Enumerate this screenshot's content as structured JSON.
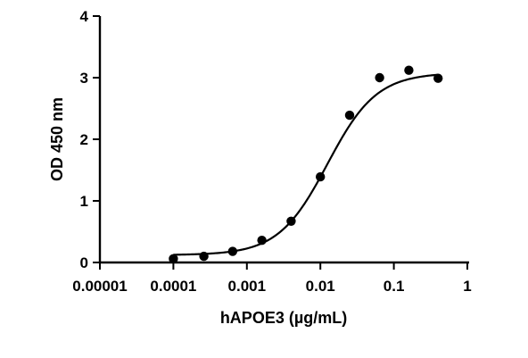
{
  "chart_data": {
    "type": "scatter",
    "title": "",
    "xlabel": "hAPOE3 (µg/mL)",
    "ylabel": "OD 450 nm",
    "x_scale": "log",
    "xlim": [
      1e-05,
      1
    ],
    "ylim": [
      0,
      4
    ],
    "x_ticks": [
      {
        "value": 1e-05,
        "label": "0.00001"
      },
      {
        "value": 0.0001,
        "label": "0.0001"
      },
      {
        "value": 0.001,
        "label": "0.001"
      },
      {
        "value": 0.01,
        "label": "0.01"
      },
      {
        "value": 0.1,
        "label": "0.1"
      },
      {
        "value": 1,
        "label": "1"
      }
    ],
    "y_ticks": [
      {
        "value": 0,
        "label": "0"
      },
      {
        "value": 1,
        "label": "1"
      },
      {
        "value": 2,
        "label": "2"
      },
      {
        "value": 3,
        "label": "3"
      },
      {
        "value": 4,
        "label": "4"
      }
    ],
    "grid": false,
    "legend": "none",
    "series": [
      {
        "points": [
          {
            "x": 0.0001,
            "y": 0.06
          },
          {
            "x": 0.00026,
            "y": 0.1
          },
          {
            "x": 0.00064,
            "y": 0.18
          },
          {
            "x": 0.0016,
            "y": 0.36
          },
          {
            "x": 0.004,
            "y": 0.67
          },
          {
            "x": 0.01,
            "y": 1.39
          },
          {
            "x": 0.025,
            "y": 2.39
          },
          {
            "x": 0.064,
            "y": 3.0
          },
          {
            "x": 0.16,
            "y": 3.12
          },
          {
            "x": 0.4,
            "y": 2.99
          }
        ],
        "fit": {
          "bottom": 0.12,
          "top": 3.08,
          "ec50": 0.0125,
          "hill": 1.3
        }
      }
    ],
    "colors": {
      "marker": "#000000",
      "curve": "#000000",
      "axis": "#000000"
    }
  }
}
